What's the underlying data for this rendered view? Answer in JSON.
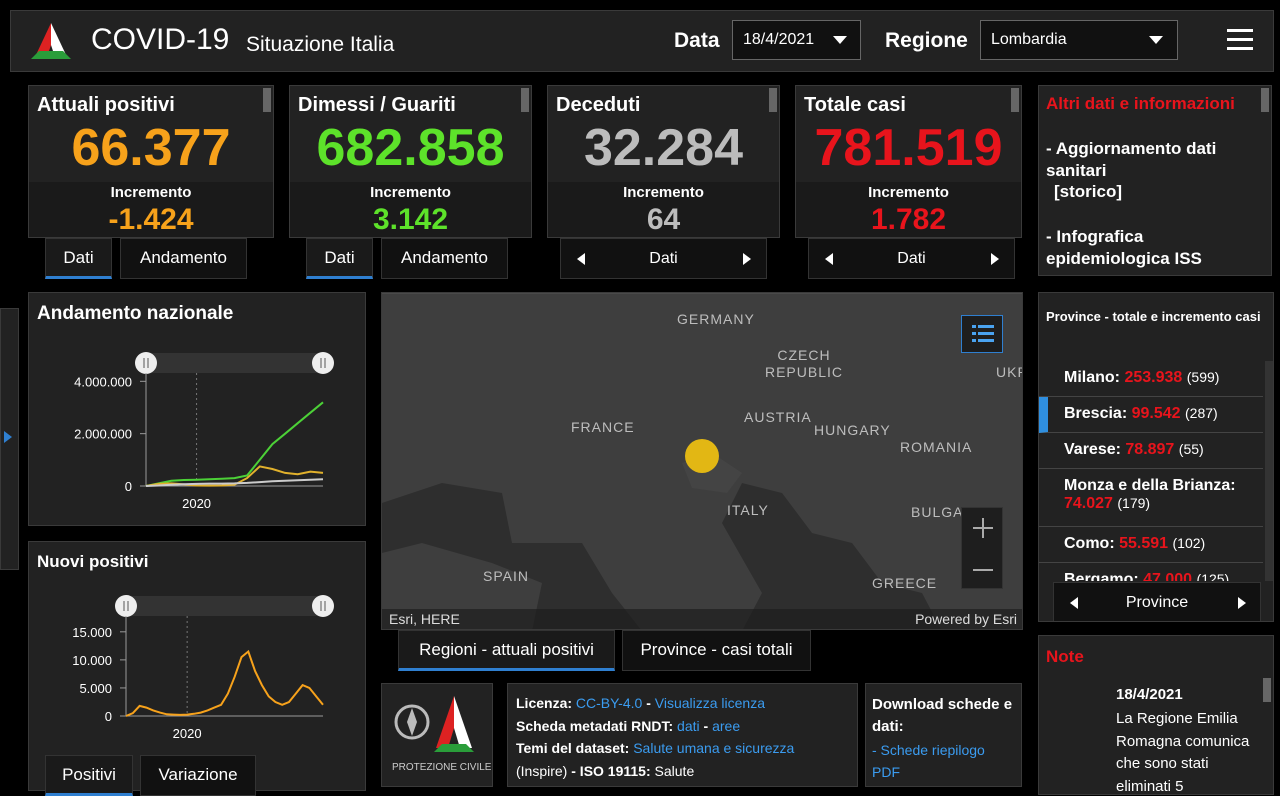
{
  "header": {
    "title": "COVID-19",
    "subtitle": "Situazione Italia",
    "date_label": "Data",
    "date": "18/4/2021",
    "region_label": "Regione",
    "region": "Lombardia"
  },
  "cards": [
    {
      "title": "Attuali positivi",
      "value": "66.377",
      "increment_label": "Incremento",
      "increment": "-1.424",
      "color": "#f7a21b",
      "tabs": [
        "Dati",
        "Andamento"
      ]
    },
    {
      "title": "Dimessi / Guariti",
      "value": "682.858",
      "increment_label": "Incremento",
      "increment": "3.142",
      "color": "#5de22a",
      "tabs": [
        "Dati",
        "Andamento"
      ]
    },
    {
      "title": "Deceduti",
      "value": "32.284",
      "increment_label": "Incremento",
      "increment": "64",
      "color": "#bcbcbc",
      "nav": "Dati"
    },
    {
      "title": "Totale casi",
      "value": "781.519",
      "increment_label": "Incremento",
      "increment": "1.782",
      "color": "#e8141c",
      "nav": "Dati"
    }
  ],
  "info": {
    "title": "Altri dati e informazioni",
    "items": [
      "- Aggiornamento dati sanitari",
      "[storico]",
      "- Infografica epidemiologica ISS"
    ]
  },
  "chart_data": [
    {
      "type": "line",
      "title": "Andamento nazionale",
      "categories": [
        null,
        null,
        null,
        null,
        "2020",
        null,
        null,
        null,
        null,
        null,
        null,
        null,
        null,
        null,
        null
      ],
      "ylim": [
        0,
        4700000
      ],
      "yticks": [
        0,
        {
          "value": 2000000,
          "label": "2.000.000"
        },
        {
          "value": 4000000,
          "label": "4.000.000"
        }
      ],
      "series": [
        {
          "color": "#4cd137",
          "values": [
            0,
            100000,
            200000,
            230000,
            240000,
            260000,
            280000,
            300000,
            400000,
            1000000,
            1600000,
            2000000,
            2400000,
            2800000,
            3200000
          ]
        },
        {
          "color": "#e1b12c",
          "values": [
            0,
            80000,
            100000,
            60000,
            20000,
            15000,
            20000,
            50000,
            300000,
            750000,
            650000,
            500000,
            450000,
            550000,
            500000
          ]
        },
        {
          "color": "#cccccc",
          "values": [
            0,
            20000,
            50000,
            70000,
            80000,
            90000,
            90000,
            100000,
            120000,
            150000,
            180000,
            200000,
            220000,
            240000,
            260000
          ]
        }
      ]
    },
    {
      "type": "line",
      "title": "Nuovi positivi",
      "categories": [
        null,
        null,
        null,
        null,
        null,
        null,
        null,
        null,
        null,
        "2020",
        null,
        null,
        null,
        null,
        null,
        null,
        null,
        null,
        null,
        null,
        null,
        null,
        null,
        null,
        null,
        null,
        null,
        null,
        null,
        null
      ],
      "ylim": [
        0,
        19600
      ],
      "yticks": [
        0,
        {
          "value": 5000,
          "label": "5.000"
        },
        {
          "value": 10000,
          "label": "10.000"
        },
        {
          "value": 15000,
          "label": "15.000"
        }
      ],
      "series": [
        {
          "color": "#f7a21b",
          "values": [
            0,
            500,
            1800,
            1500,
            1000,
            600,
            300,
            250,
            200,
            250,
            400,
            600,
            1000,
            1500,
            2000,
            4000,
            7000,
            10500,
            11500,
            8000,
            5500,
            3500,
            2500,
            2000,
            2500,
            4000,
            5500,
            5000,
            3500,
            2000
          ]
        }
      ]
    }
  ],
  "chart_tabs": [
    "Positivi",
    "Variazione"
  ],
  "map": {
    "labels": [
      "GERMANY",
      "CZECH REPUBLIC",
      "UKR",
      "FRANCE",
      "AUSTRIA",
      "HUNGARY",
      "ROMANIA",
      "ITALY",
      "BULGA",
      "SPAIN",
      "GREECE"
    ],
    "attribution": "Esri, HERE",
    "powered": "Powered by Esri",
    "tabs": [
      "Regioni - attuali positivi",
      "Province - casi totali"
    ]
  },
  "provinces": {
    "title": "Province - totale e incremento casi",
    "nav": "Province",
    "items": [
      {
        "name": "Milano:",
        "total": "253.938",
        "increment": "(599)"
      },
      {
        "name": "Brescia:",
        "total": "99.542",
        "increment": "(287)"
      },
      {
        "name": "Varese:",
        "total": "78.897",
        "increment": "(55)"
      },
      {
        "name": "Monza e della Brianza:",
        "total": "74.027",
        "increment": "(179)"
      },
      {
        "name": "Como:",
        "total": "55.591",
        "increment": "(102)"
      },
      {
        "name": "Bergamo:",
        "total": "47.000",
        "increment": "(125)"
      }
    ]
  },
  "logo": {
    "text": "PROTEZIONE CIVILE"
  },
  "license": {
    "lines": [
      [
        "Licenza:",
        "CC-BY-4.0",
        "-",
        "Visualizza licenza"
      ],
      [
        "Scheda metadati RNDT:",
        "dati",
        "-",
        "aree"
      ],
      [
        "Temi del dataset:",
        "Salute umana e sicurezza"
      ],
      [
        "(Inspire)",
        "- ISO 19115:",
        "Salute"
      ]
    ]
  },
  "download": {
    "title": "Download schede e dati:",
    "items": [
      "- Schede riepilogo PDF"
    ]
  },
  "note": {
    "title": "Note",
    "date": "18/4/2021",
    "text": "La Regione Emilia Romagna comunica che sono stati eliminati 5"
  }
}
